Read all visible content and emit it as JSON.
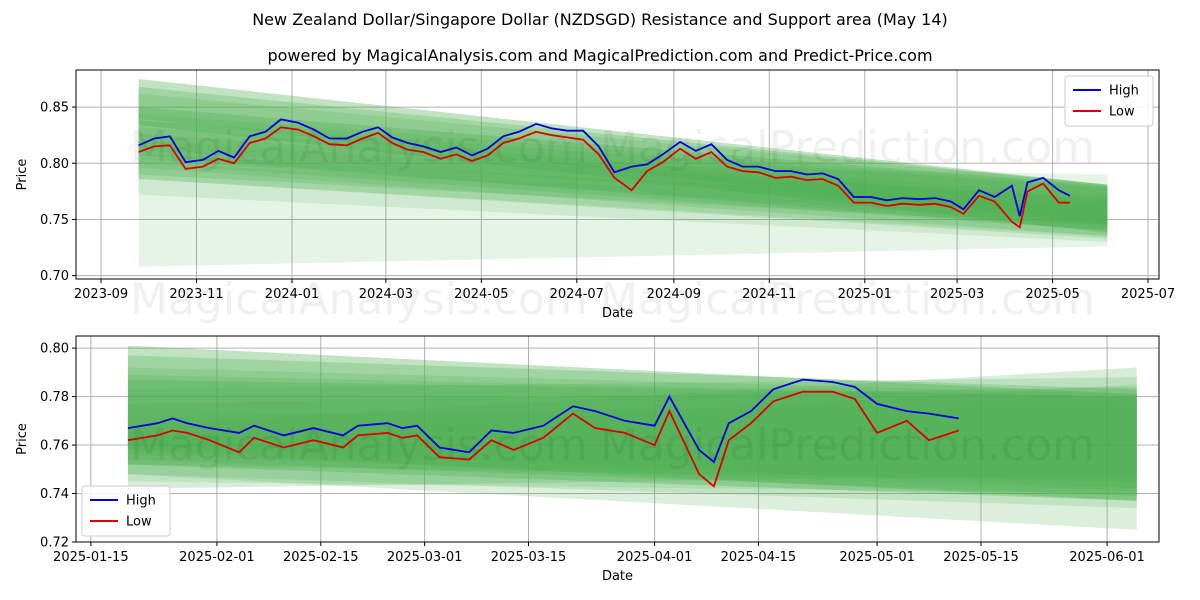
{
  "title": "New Zealand Dollar/Singapore Dollar (NZDSGD) Resistance and Support area (May 14)",
  "subtitle": "powered by MagicalAnalysis.com and MagicalPrediction.com and Predict-Price.com",
  "watermarks": [
    "MagicalAnalysis.com",
    "MagicalPrediction.com"
  ],
  "colors": {
    "high": "#0000dd",
    "low": "#dd0000",
    "band": "#4caf50",
    "grid": "#b0b0b0"
  },
  "chart_data": [
    {
      "type": "line",
      "xlabel": "Date",
      "ylabel": "Price",
      "ylim": [
        0.697,
        0.883
      ],
      "xlim": [
        "2023-08-16",
        "2025-07-08"
      ],
      "x_ticks": [
        "2023-09",
        "2023-11",
        "2024-01",
        "2024-03",
        "2024-05",
        "2024-07",
        "2024-09",
        "2024-11",
        "2025-01",
        "2025-03",
        "2025-05",
        "2025-07"
      ],
      "x_tick_dates": [
        "2023-09-01",
        "2023-11-01",
        "2024-01-01",
        "2024-03-01",
        "2024-05-01",
        "2024-07-01",
        "2024-09-01",
        "2024-11-01",
        "2025-01-01",
        "2025-03-01",
        "2025-05-01",
        "2025-07-01"
      ],
      "y_ticks": [
        0.7,
        0.75,
        0.8,
        0.85
      ],
      "grid": true,
      "legend_position": "top-right",
      "series": [
        {
          "name": "High",
          "x": [
            "2023-09-25",
            "2023-10-05",
            "2023-10-15",
            "2023-10-25",
            "2023-11-05",
            "2023-11-15",
            "2023-11-25",
            "2023-12-05",
            "2023-12-15",
            "2023-12-25",
            "2024-01-05",
            "2024-01-15",
            "2024-01-25",
            "2024-02-05",
            "2024-02-15",
            "2024-02-25",
            "2024-03-05",
            "2024-03-15",
            "2024-03-25",
            "2024-04-05",
            "2024-04-15",
            "2024-04-25",
            "2024-05-05",
            "2024-05-15",
            "2024-05-25",
            "2024-06-05",
            "2024-06-15",
            "2024-06-25",
            "2024-07-05",
            "2024-07-15",
            "2024-07-25",
            "2024-08-05",
            "2024-08-15",
            "2024-08-25",
            "2024-09-05",
            "2024-09-15",
            "2024-09-25",
            "2024-10-05",
            "2024-10-15",
            "2024-10-25",
            "2024-11-05",
            "2024-11-15",
            "2024-11-25",
            "2024-12-05",
            "2024-12-15",
            "2024-12-25",
            "2025-01-05",
            "2025-01-15",
            "2025-01-25",
            "2025-02-05",
            "2025-02-15",
            "2025-02-25",
            "2025-03-05",
            "2025-03-15",
            "2025-03-25",
            "2025-04-05",
            "2025-04-10",
            "2025-04-15",
            "2025-04-25",
            "2025-05-05",
            "2025-05-12"
          ],
          "values": [
            0.816,
            0.822,
            0.824,
            0.801,
            0.803,
            0.811,
            0.805,
            0.824,
            0.828,
            0.839,
            0.836,
            0.83,
            0.822,
            0.822,
            0.828,
            0.832,
            0.823,
            0.818,
            0.815,
            0.81,
            0.814,
            0.807,
            0.813,
            0.824,
            0.828,
            0.835,
            0.831,
            0.829,
            0.829,
            0.815,
            0.792,
            0.797,
            0.799,
            0.808,
            0.819,
            0.811,
            0.817,
            0.803,
            0.797,
            0.797,
            0.793,
            0.793,
            0.79,
            0.791,
            0.786,
            0.77,
            0.77,
            0.767,
            0.769,
            0.768,
            0.769,
            0.766,
            0.759,
            0.776,
            0.77,
            0.78,
            0.753,
            0.783,
            0.787,
            0.776,
            0.771
          ]
        },
        {
          "name": "Low",
          "x": [
            "2023-09-25",
            "2023-10-05",
            "2023-10-15",
            "2023-10-25",
            "2023-11-05",
            "2023-11-15",
            "2023-11-25",
            "2023-12-05",
            "2023-12-15",
            "2023-12-25",
            "2024-01-05",
            "2024-01-15",
            "2024-01-25",
            "2024-02-05",
            "2024-02-15",
            "2024-02-25",
            "2024-03-05",
            "2024-03-15",
            "2024-03-25",
            "2024-04-05",
            "2024-04-15",
            "2024-04-25",
            "2024-05-05",
            "2024-05-15",
            "2024-05-25",
            "2024-06-05",
            "2024-06-15",
            "2024-06-25",
            "2024-07-05",
            "2024-07-15",
            "2024-07-25",
            "2024-08-05",
            "2024-08-15",
            "2024-08-25",
            "2024-09-05",
            "2024-09-15",
            "2024-09-25",
            "2024-10-05",
            "2024-10-15",
            "2024-10-25",
            "2024-11-05",
            "2024-11-15",
            "2024-11-25",
            "2024-12-05",
            "2024-12-15",
            "2024-12-25",
            "2025-01-05",
            "2025-01-15",
            "2025-01-25",
            "2025-02-05",
            "2025-02-15",
            "2025-02-25",
            "2025-03-05",
            "2025-03-15",
            "2025-03-25",
            "2025-04-05",
            "2025-04-10",
            "2025-04-15",
            "2025-04-25",
            "2025-05-05",
            "2025-05-12"
          ],
          "values": [
            0.81,
            0.815,
            0.816,
            0.795,
            0.797,
            0.804,
            0.8,
            0.818,
            0.822,
            0.832,
            0.83,
            0.824,
            0.817,
            0.816,
            0.822,
            0.827,
            0.818,
            0.812,
            0.81,
            0.804,
            0.808,
            0.802,
            0.807,
            0.818,
            0.822,
            0.828,
            0.825,
            0.823,
            0.821,
            0.808,
            0.787,
            0.776,
            0.793,
            0.801,
            0.813,
            0.804,
            0.81,
            0.797,
            0.793,
            0.792,
            0.787,
            0.788,
            0.785,
            0.786,
            0.78,
            0.765,
            0.765,
            0.762,
            0.764,
            0.763,
            0.764,
            0.761,
            0.755,
            0.771,
            0.766,
            0.748,
            0.743,
            0.775,
            0.782,
            0.765,
            0.765
          ]
        }
      ]
    },
    {
      "type": "line",
      "xlabel": "Date",
      "ylabel": "Price",
      "ylim": [
        0.72,
        0.805
      ],
      "xlim": [
        "2025-01-13",
        "2025-06-08"
      ],
      "x_ticks": [
        "2025-01-15",
        "2025-02-01",
        "2025-02-15",
        "2025-03-01",
        "2025-03-15",
        "2025-04-01",
        "2025-04-15",
        "2025-05-01",
        "2025-05-15",
        "2025-06-01"
      ],
      "y_ticks": [
        0.72,
        0.74,
        0.76,
        0.78,
        0.8
      ],
      "grid": true,
      "legend_position": "bottom-left",
      "series": [
        {
          "name": "High",
          "x": [
            "2025-01-20",
            "2025-01-24",
            "2025-01-26",
            "2025-01-28",
            "2025-01-31",
            "2025-02-04",
            "2025-02-06",
            "2025-02-10",
            "2025-02-14",
            "2025-02-18",
            "2025-02-20",
            "2025-02-24",
            "2025-02-26",
            "2025-02-28",
            "2025-03-03",
            "2025-03-07",
            "2025-03-10",
            "2025-03-13",
            "2025-03-17",
            "2025-03-21",
            "2025-03-24",
            "2025-03-28",
            "2025-04-01",
            "2025-04-03",
            "2025-04-07",
            "2025-04-09",
            "2025-04-11",
            "2025-04-14",
            "2025-04-17",
            "2025-04-21",
            "2025-04-25",
            "2025-04-28",
            "2025-05-01",
            "2025-05-05",
            "2025-05-08",
            "2025-05-12"
          ],
          "values": [
            0.767,
            0.769,
            0.771,
            0.769,
            0.767,
            0.765,
            0.768,
            0.764,
            0.767,
            0.764,
            0.768,
            0.769,
            0.767,
            0.768,
            0.759,
            0.757,
            0.766,
            0.765,
            0.768,
            0.776,
            0.774,
            0.77,
            0.768,
            0.78,
            0.758,
            0.753,
            0.769,
            0.774,
            0.783,
            0.787,
            0.786,
            0.784,
            0.777,
            0.774,
            0.773,
            0.771
          ]
        },
        {
          "name": "Low",
          "x": [
            "2025-01-20",
            "2025-01-24",
            "2025-01-26",
            "2025-01-28",
            "2025-01-31",
            "2025-02-04",
            "2025-02-06",
            "2025-02-10",
            "2025-02-14",
            "2025-02-18",
            "2025-02-20",
            "2025-02-24",
            "2025-02-26",
            "2025-02-28",
            "2025-03-03",
            "2025-03-07",
            "2025-03-10",
            "2025-03-13",
            "2025-03-17",
            "2025-03-21",
            "2025-03-24",
            "2025-03-28",
            "2025-04-01",
            "2025-04-03",
            "2025-04-07",
            "2025-04-09",
            "2025-04-11",
            "2025-04-14",
            "2025-04-17",
            "2025-04-21",
            "2025-04-25",
            "2025-04-28",
            "2025-05-01",
            "2025-05-05",
            "2025-05-08",
            "2025-05-12"
          ],
          "values": [
            0.762,
            0.764,
            0.766,
            0.765,
            0.762,
            0.757,
            0.763,
            0.759,
            0.762,
            0.759,
            0.764,
            0.765,
            0.763,
            0.764,
            0.755,
            0.754,
            0.762,
            0.758,
            0.763,
            0.773,
            0.767,
            0.765,
            0.76,
            0.774,
            0.748,
            0.743,
            0.762,
            0.769,
            0.778,
            0.782,
            0.782,
            0.779,
            0.765,
            0.77,
            0.762,
            0.766
          ]
        }
      ]
    }
  ]
}
